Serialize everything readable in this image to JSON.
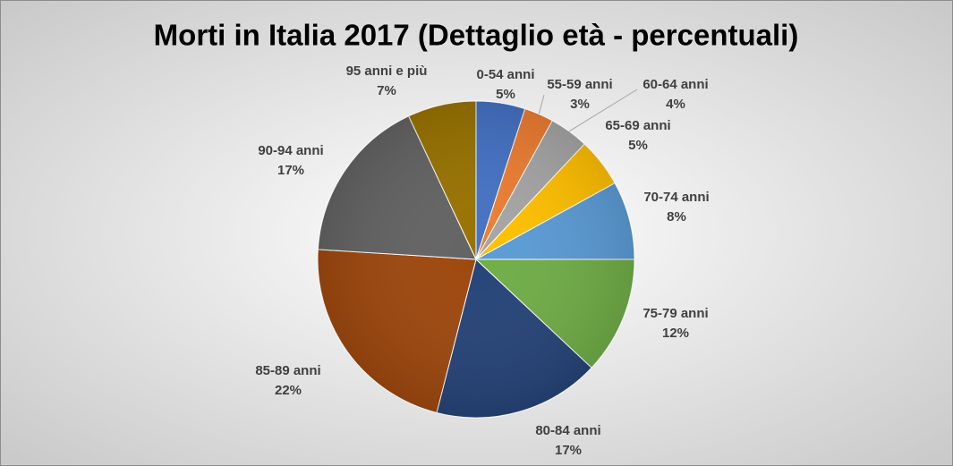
{
  "chart_data": {
    "type": "pie",
    "title": "Morti in Italia 2017 (Dettaglio età - percentuali)",
    "categories": [
      "0-54 anni",
      "55-59 anni",
      "60-64 anni",
      "65-69 anni",
      "70-74 anni",
      "75-79 anni",
      "80-84 anni",
      "85-89 anni",
      "90-94 anni",
      "95 anni e più"
    ],
    "values": [
      5,
      3,
      4,
      5,
      8,
      12,
      17,
      22,
      17,
      7
    ],
    "value_labels": [
      "5%",
      "3%",
      "4%",
      "5%",
      "8%",
      "12%",
      "17%",
      "22%",
      "17%",
      "7%"
    ],
    "colors": [
      "#4472c4",
      "#ed7d31",
      "#a5a5a5",
      "#ffc000",
      "#5b9bd5",
      "#70ad47",
      "#264478",
      "#9e480e",
      "#636363",
      "#997300"
    ]
  }
}
